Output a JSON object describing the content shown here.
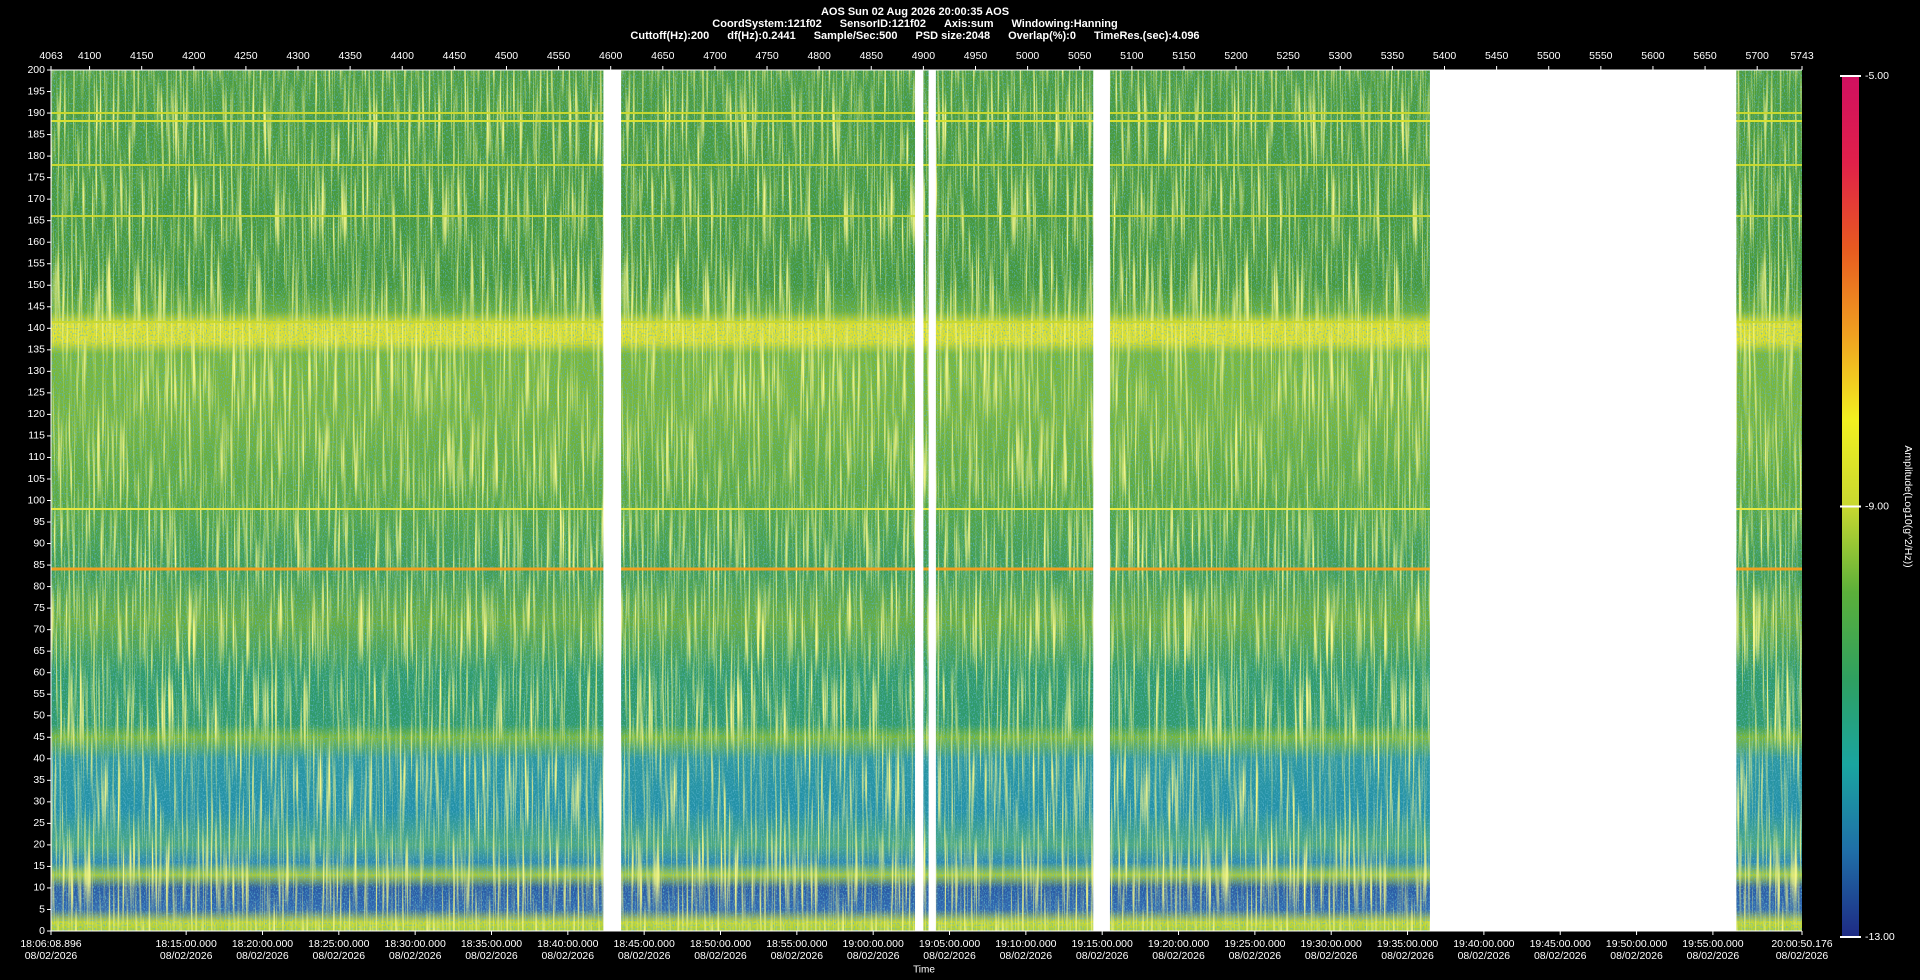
{
  "header": {
    "title": "AOS  Sun 02 Aug 2026 20:00:35  AOS",
    "line2": [
      "CoordSystem:121f02",
      "SensorID:121f02",
      "Axis:sum",
      "Windowing:Hanning"
    ],
    "line3": [
      "Cuttoff(Hz):200",
      "df(Hz):0.2441",
      "Sample/Sec:500",
      "PSD size:2048",
      "Overlap(%):0",
      "TimeRes.(sec):4.096"
    ]
  },
  "chart_data": {
    "type": "spectrogram",
    "xlim": [
      4063,
      5743
    ],
    "xticks": [
      4063,
      4100,
      4150,
      4200,
      4250,
      4300,
      4350,
      4400,
      4450,
      4500,
      4550,
      4600,
      4650,
      4700,
      4750,
      4800,
      4850,
      4900,
      4950,
      5000,
      5050,
      5100,
      5150,
      5200,
      5250,
      5300,
      5350,
      5400,
      5450,
      5500,
      5550,
      5600,
      5650,
      5700,
      5743
    ],
    "ylim": [
      0,
      200
    ],
    "yticks": [
      0,
      5,
      10,
      15,
      20,
      25,
      30,
      35,
      40,
      45,
      50,
      55,
      60,
      65,
      70,
      75,
      80,
      85,
      90,
      95,
      100,
      105,
      110,
      115,
      120,
      125,
      130,
      135,
      140,
      145,
      150,
      155,
      160,
      165,
      170,
      175,
      180,
      185,
      190,
      195,
      200
    ],
    "x2label": "Time",
    "x2lim": [
      65168.896,
      72050.176
    ],
    "x2ticks": [
      {
        "value": 65168.896,
        "label": "18:06:08.896",
        "date": "08/02/2026"
      },
      {
        "value": 65700,
        "label": "18:15:00.000",
        "date": "08/02/2026"
      },
      {
        "value": 66000,
        "label": "18:20:00.000",
        "date": "08/02/2026"
      },
      {
        "value": 66300,
        "label": "18:25:00.000",
        "date": "08/02/2026"
      },
      {
        "value": 66600,
        "label": "18:30:00.000",
        "date": "08/02/2026"
      },
      {
        "value": 66900,
        "label": "18:35:00.000",
        "date": "08/02/2026"
      },
      {
        "value": 67200,
        "label": "18:40:00.000",
        "date": "08/02/2026"
      },
      {
        "value": 67500,
        "label": "18:45:00.000",
        "date": "08/02/2026"
      },
      {
        "value": 67800,
        "label": "18:50:00.000",
        "date": "08/02/2026"
      },
      {
        "value": 68100,
        "label": "18:55:00.000",
        "date": "08/02/2026"
      },
      {
        "value": 68400,
        "label": "19:00:00.000",
        "date": "08/02/2026"
      },
      {
        "value": 68700,
        "label": "19:05:00.000",
        "date": "08/02/2026"
      },
      {
        "value": 69000,
        "label": "19:10:00.000",
        "date": "08/02/2026"
      },
      {
        "value": 69300,
        "label": "19:15:00.000",
        "date": "08/02/2026"
      },
      {
        "value": 69600,
        "label": "19:20:00.000",
        "date": "08/02/2026"
      },
      {
        "value": 69900,
        "label": "19:25:00.000",
        "date": "08/02/2026"
      },
      {
        "value": 70200,
        "label": "19:30:00.000",
        "date": "08/02/2026"
      },
      {
        "value": 70500,
        "label": "19:35:00.000",
        "date": "08/02/2026"
      },
      {
        "value": 70800,
        "label": "19:40:00.000",
        "date": "08/02/2026"
      },
      {
        "value": 71100,
        "label": "19:45:00.000",
        "date": "08/02/2026"
      },
      {
        "value": 71400,
        "label": "19:50:00.000",
        "date": "08/02/2026"
      },
      {
        "value": 71700,
        "label": "19:55:00.000",
        "date": "08/02/2026"
      },
      {
        "value": 72050.176,
        "label": "20:00:50.176",
        "date": "08/02/2026"
      }
    ],
    "gaps": [
      [
        4593,
        4610
      ],
      [
        4892,
        4900
      ],
      [
        4905,
        4912
      ],
      [
        5063,
        5079
      ],
      [
        5386,
        5680
      ]
    ],
    "colorbar": {
      "label": "Amplitude(Log10(g^2/Hz))",
      "lim": [
        -13,
        -5
      ],
      "ticks": [
        {
          "value": -5,
          "label": "-5.00"
        },
        {
          "value": -9,
          "label": "-9.00"
        },
        {
          "value": -13,
          "label": "-13.00"
        }
      ],
      "colors": [
        "#1e2a84",
        "#1f6fa8",
        "#1aa5a0",
        "#2fa060",
        "#5bb03a",
        "#c8d830",
        "#f2f020",
        "#f0a020",
        "#e85a20",
        "#e0204a",
        "#d01060"
      ]
    }
  }
}
